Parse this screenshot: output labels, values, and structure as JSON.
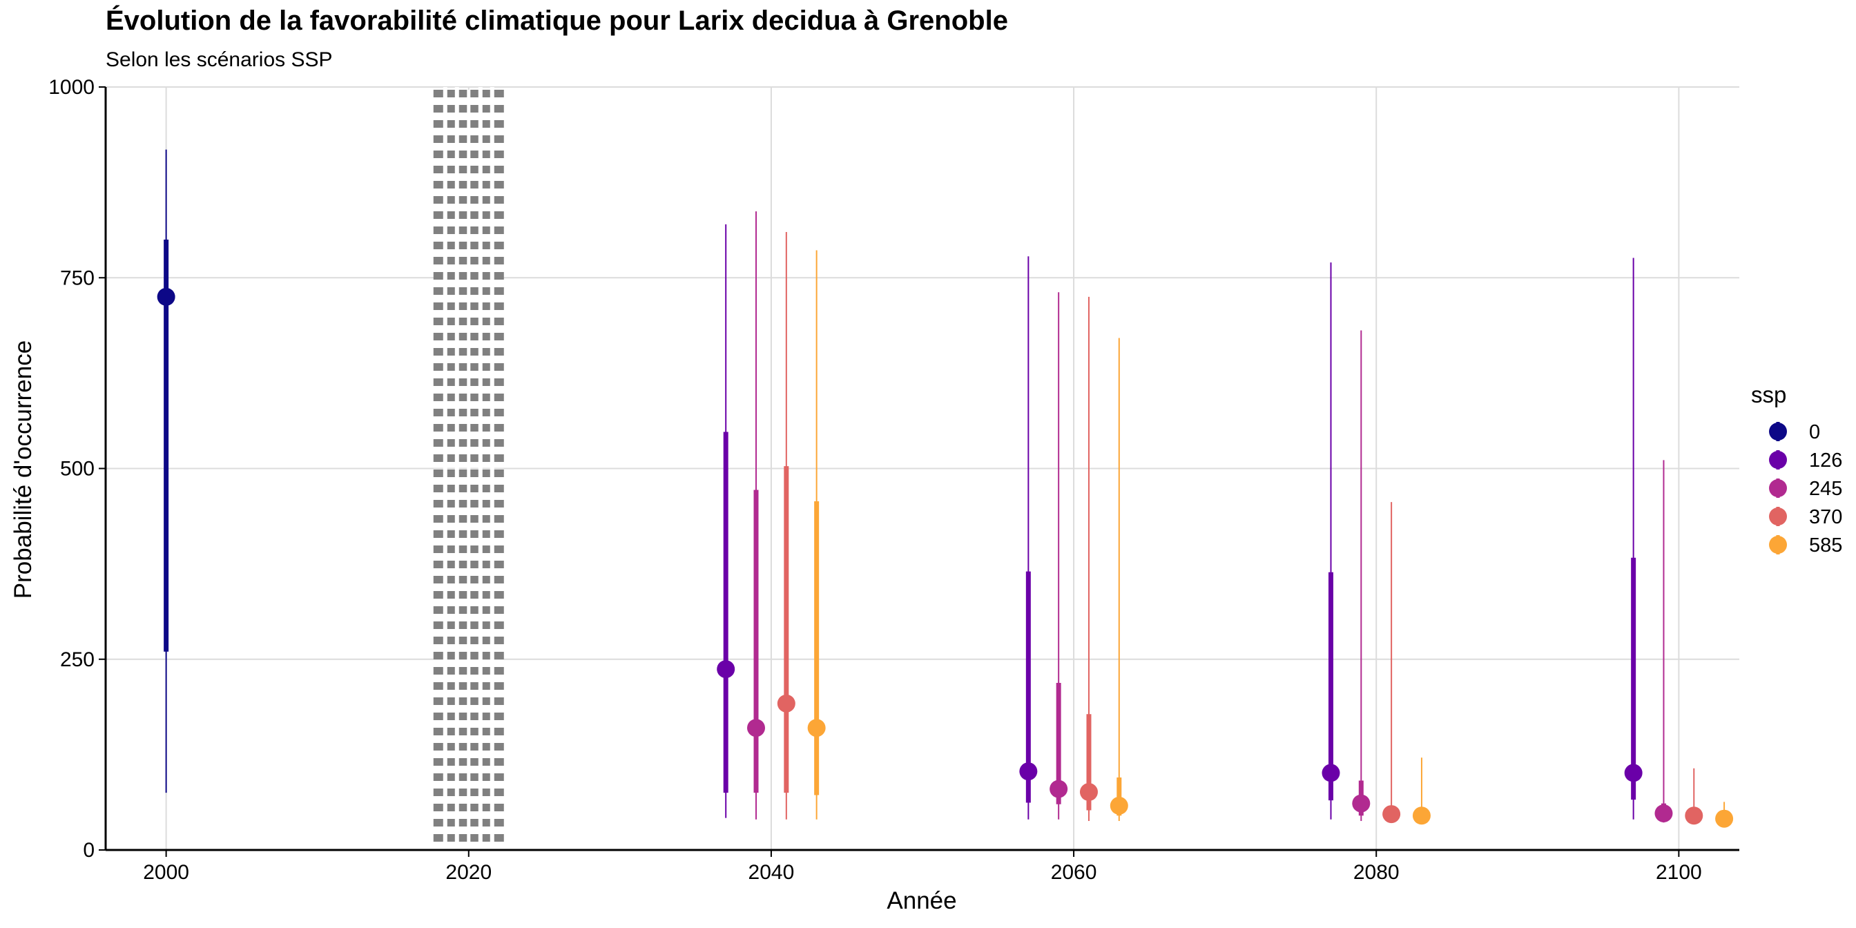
{
  "chart_data": {
    "type": "pointrange",
    "title": "Évolution de la favorabilité climatique pour Larix decidua à Grenoble",
    "subtitle": "Selon les scénarios SSP",
    "xlabel": "Année",
    "ylabel": "Probabilité d'occurrence",
    "xlim": [
      1996,
      2104
    ],
    "ylim": [
      0,
      1000
    ],
    "x_ticks": [
      2000,
      2020,
      2040,
      2060,
      2080,
      2100
    ],
    "y_ticks": [
      0,
      250,
      500,
      750,
      1000
    ],
    "grid": true,
    "reference_line": {
      "x": 2020,
      "style": "dotted"
    },
    "legend": {
      "title": "ssp",
      "position": "right"
    },
    "series": [
      {
        "name": "0",
        "color": "#0d0887",
        "points": [
          {
            "x": 2000,
            "y": 725,
            "inner": [
              260,
              800
            ],
            "outer": [
              75,
              918
            ]
          }
        ]
      },
      {
        "name": "126",
        "color": "#6a00a8",
        "points": [
          {
            "x": 2037,
            "y": 237,
            "inner": [
              75,
              548
            ],
            "outer": [
              42,
              820
            ]
          },
          {
            "x": 2057,
            "y": 103,
            "inner": [
              62,
              365
            ],
            "outer": [
              40,
              778
            ]
          },
          {
            "x": 2077,
            "y": 101,
            "inner": [
              65,
              364
            ],
            "outer": [
              40,
              770
            ]
          },
          {
            "x": 2097,
            "y": 101,
            "inner": [
              66,
              383
            ],
            "outer": [
              40,
              776
            ]
          }
        ]
      },
      {
        "name": "245",
        "color": "#b12a90",
        "points": [
          {
            "x": 2039,
            "y": 160,
            "inner": [
              75,
              472
            ],
            "outer": [
              40,
              837
            ]
          },
          {
            "x": 2059,
            "y": 80,
            "inner": [
              60,
              219
            ],
            "outer": [
              40,
              731
            ]
          },
          {
            "x": 2079,
            "y": 61,
            "inner": [
              45,
              91
            ],
            "outer": [
              38,
              681
            ]
          },
          {
            "x": 2099,
            "y": 48,
            "inner": [
              42,
              61
            ],
            "outer": [
              36,
              511
            ]
          }
        ]
      },
      {
        "name": "370",
        "color": "#e16462",
        "points": [
          {
            "x": 2041,
            "y": 192,
            "inner": [
              75,
              503
            ],
            "outer": [
              40,
              810
            ]
          },
          {
            "x": 2061,
            "y": 76,
            "inner": [
              52,
              178
            ],
            "outer": [
              38,
              725
            ]
          },
          {
            "x": 2081,
            "y": 47,
            "inner": [
              42,
              55
            ],
            "outer": [
              36,
              456
            ]
          },
          {
            "x": 2101,
            "y": 45,
            "inner": [
              40,
              51
            ],
            "outer": [
              35,
              107
            ]
          }
        ]
      },
      {
        "name": "585",
        "color": "#fca636",
        "points": [
          {
            "x": 2043,
            "y": 160,
            "inner": [
              72,
              457
            ],
            "outer": [
              40,
              786
            ]
          },
          {
            "x": 2063,
            "y": 58,
            "inner": [
              45,
              95
            ],
            "outer": [
              38,
              671
            ]
          },
          {
            "x": 2083,
            "y": 45,
            "inner": [
              40,
              50
            ],
            "outer": [
              35,
              121
            ]
          },
          {
            "x": 2103,
            "y": 41,
            "inner": [
              37,
              45
            ],
            "outer": [
              33,
              63
            ]
          }
        ]
      }
    ]
  }
}
